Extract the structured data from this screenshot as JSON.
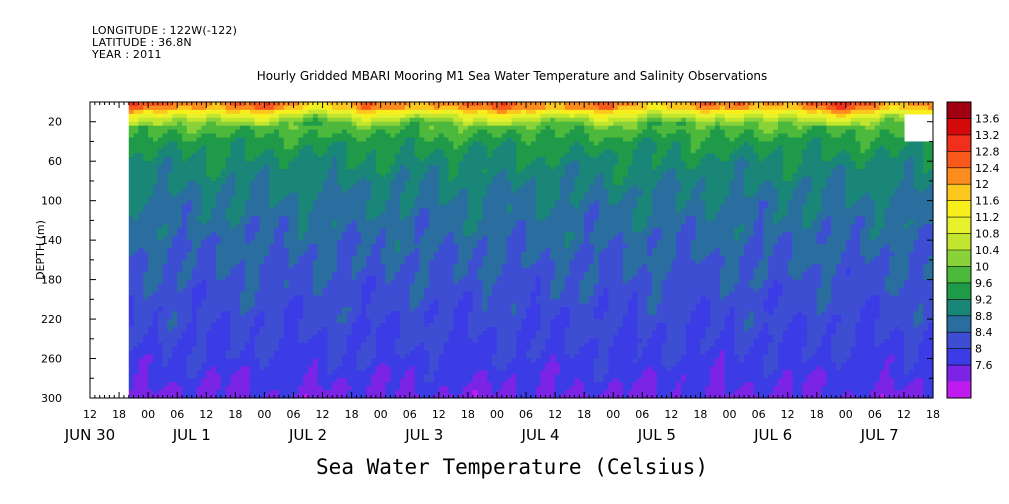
{
  "header": {
    "longitude": "LONGITUDE : 122W(-122)",
    "latitude": "LATITUDE : 36.8N",
    "year": "YEAR : 2011"
  },
  "chart_data": {
    "type": "heatmap",
    "title": "Hourly Gridded MBARI Mooring M1 Sea Water Temperature and Salinity Observations",
    "footer_title": "Sea Water Temperature (Celsius)",
    "ylabel": "DEPTH (m)",
    "y_axis_reversed": true,
    "ylim": [
      0,
      300
    ],
    "yticks": [
      20,
      60,
      100,
      140,
      180,
      220,
      260,
      300
    ],
    "xlim_hours": [
      0,
      174
    ],
    "x_hour_ticks": [
      "12",
      "18",
      "00",
      "06",
      "12",
      "18",
      "00",
      "06",
      "12",
      "18",
      "00",
      "06",
      "12",
      "18",
      "00",
      "06",
      "12",
      "18",
      "00",
      "06",
      "12",
      "18",
      "00",
      "06",
      "12",
      "18",
      "00",
      "06",
      "12",
      "18"
    ],
    "x_date_labels": [
      {
        "label": "JUN 30",
        "hour": 0
      },
      {
        "label": "JUL  1",
        "hour": 21
      },
      {
        "label": "JUL  2",
        "hour": 45
      },
      {
        "label": "JUL  3",
        "hour": 69
      },
      {
        "label": "JUL  4",
        "hour": 93
      },
      {
        "label": "JUL  5",
        "hour": 117
      },
      {
        "label": "JUL  6",
        "hour": 141
      },
      {
        "label": "JUL  7",
        "hour": 163
      }
    ],
    "data_start_hour": 8,
    "colorbar_levels": [
      "13.6",
      "13.2",
      "12.8",
      "12.4",
      "12",
      "11.6",
      "11.2",
      "10.8",
      "10.4",
      "10",
      "9.6",
      "9.2",
      "8.8",
      "8.4",
      "8",
      "7.6"
    ],
    "colorbar_colors": [
      "#a00010",
      "#d40a0a",
      "#f0301c",
      "#f85a1c",
      "#fc8c1e",
      "#fcc81e",
      "#f8ef1c",
      "#e6f22c",
      "#c2e52e",
      "#8ad23a",
      "#4cb83c",
      "#1f9a48",
      "#1a8678",
      "#2a6ea0",
      "#3e4ed2",
      "#3c3ce6",
      "#7b24e6",
      "#c01cf0"
    ],
    "temperature_profile": [
      {
        "depth": 5,
        "value": 12.6
      },
      {
        "depth": 10,
        "value": 11.8
      },
      {
        "depth": 16,
        "value": 11.0
      },
      {
        "depth": 24,
        "value": 10.3
      },
      {
        "depth": 40,
        "value": 9.8
      },
      {
        "depth": 60,
        "value": 9.5
      },
      {
        "depth": 90,
        "value": 9.2
      },
      {
        "depth": 140,
        "value": 8.9
      },
      {
        "depth": 200,
        "value": 8.6
      },
      {
        "depth": 260,
        "value": 8.3
      },
      {
        "depth": 300,
        "value": 7.9
      }
    ],
    "missing_region": {
      "hour_start": 168,
      "hour_end": 174,
      "depth_start": 12,
      "depth_end": 40
    }
  }
}
